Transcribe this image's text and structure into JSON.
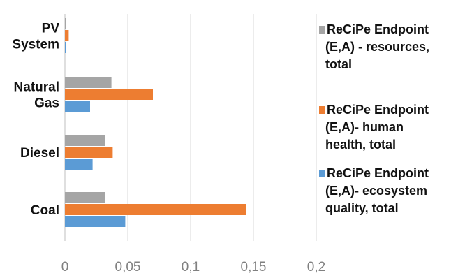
{
  "chart_data": {
    "type": "bar",
    "orientation": "horizontal",
    "categories": [
      [
        "PV",
        "System"
      ],
      [
        "Natural",
        "Gas"
      ],
      [
        "Diesel"
      ],
      [
        "Coal"
      ]
    ],
    "series": [
      {
        "name": "ReCiPe Endpoint (E,A) - resources, total",
        "legend_lines": [
          "ReCiPe Endpoint",
          "(E,A) - resources,",
          "total"
        ],
        "color": "#a5a5a5",
        "values": [
          0.001,
          0.037,
          0.032,
          0.032
        ]
      },
      {
        "name": "ReCiPe Endpoint (E,A)- human health, total",
        "legend_lines": [
          "ReCiPe Endpoint",
          "(E,A)- human",
          "health, total"
        ],
        "color": "#ed7d31",
        "values": [
          0.003,
          0.07,
          0.038,
          0.144
        ]
      },
      {
        "name": "ReCiPe Endpoint (E,A)- ecosystem quality, total",
        "legend_lines": [
          "ReCiPe Endpoint",
          "(E,A)- ecosystem",
          "quality, total"
        ],
        "color": "#5b9bd5",
        "values": [
          0.001,
          0.02,
          0.022,
          0.048
        ]
      }
    ],
    "xticks": [
      "0",
      "0,05",
      "0,1",
      "0,15",
      "0,2"
    ],
    "xtick_values": [
      0,
      0.05,
      0.1,
      0.15,
      0.2
    ],
    "xlim": [
      0,
      0.2
    ],
    "grid": "vertical",
    "legend_position": "right",
    "title": "",
    "xlabel": "",
    "ylabel": ""
  }
}
